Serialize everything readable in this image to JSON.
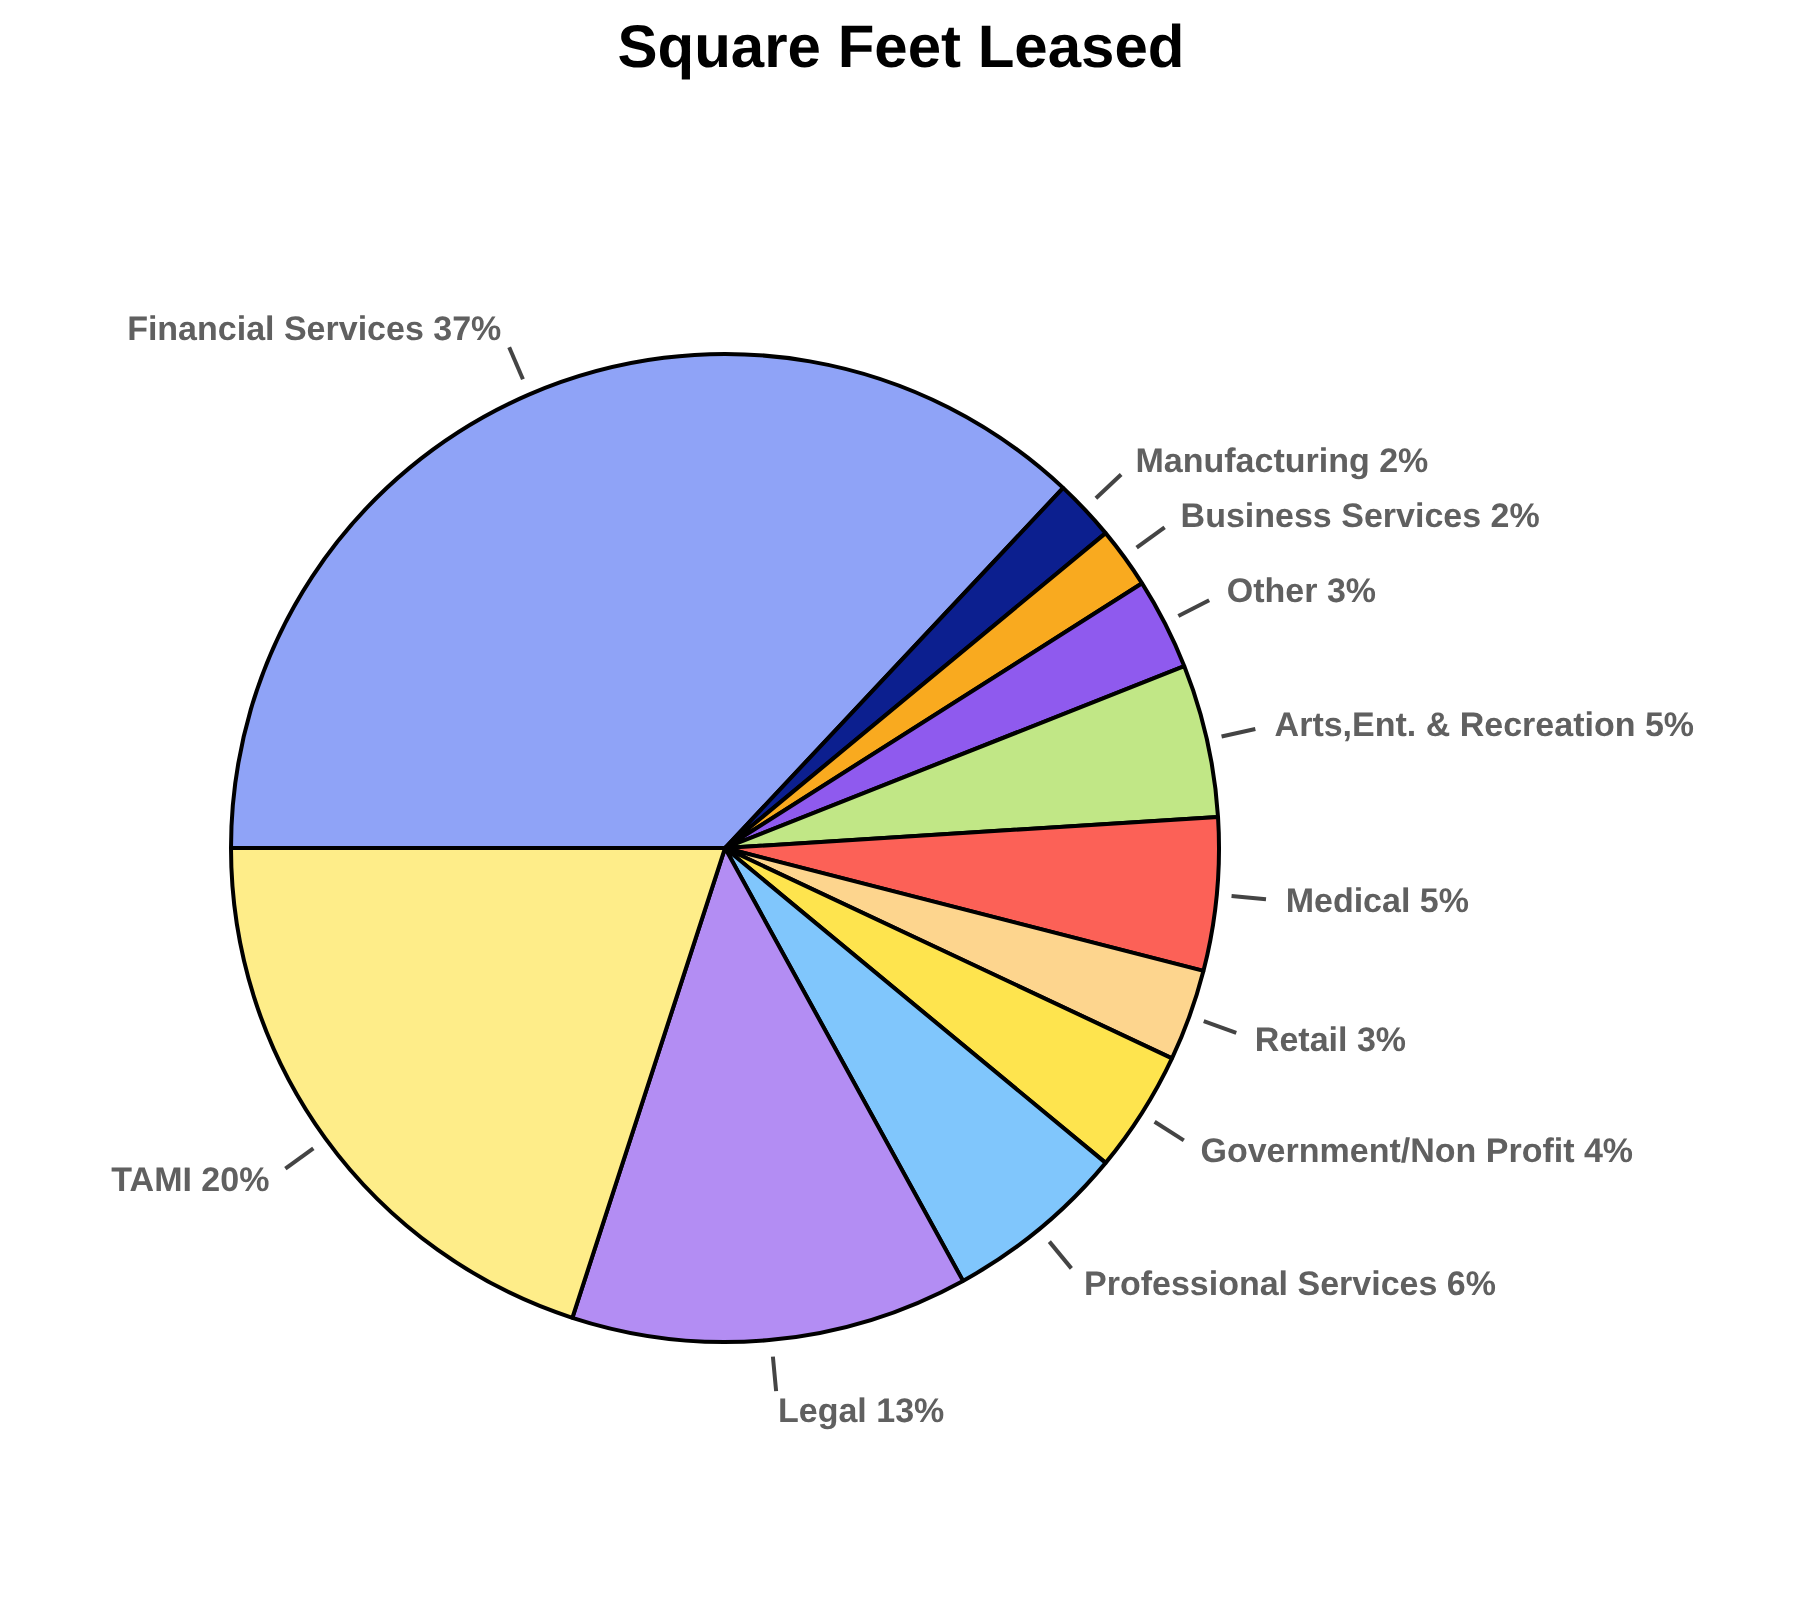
{
  "chart_data": {
    "type": "pie",
    "title": "Square Feet Leased",
    "categories": [
      "Financial Services",
      "Manufacturing",
      "Business Services",
      "Other",
      "Arts,Ent. & Recreation",
      "Medical",
      "Retail",
      "Government/Non Profit",
      "Professional Services",
      "Legal",
      "TAMI"
    ],
    "values": [
      37,
      2,
      2,
      3,
      5,
      5,
      3,
      4,
      6,
      13,
      20
    ],
    "value_labels": [
      "37%",
      "2%",
      "2%",
      "3%",
      "5%",
      "5%",
      "3%",
      "4%",
      "6%",
      "13%",
      "20%"
    ],
    "colors": [
      "#8fa3f7",
      "#0c1f8f",
      "#f9aa1f",
      "#8f5aee",
      "#c1e786",
      "#fc6157",
      "#fdd58e",
      "#fee44e",
      "#80c6fc",
      "#b38df3",
      "#feed89"
    ]
  }
}
